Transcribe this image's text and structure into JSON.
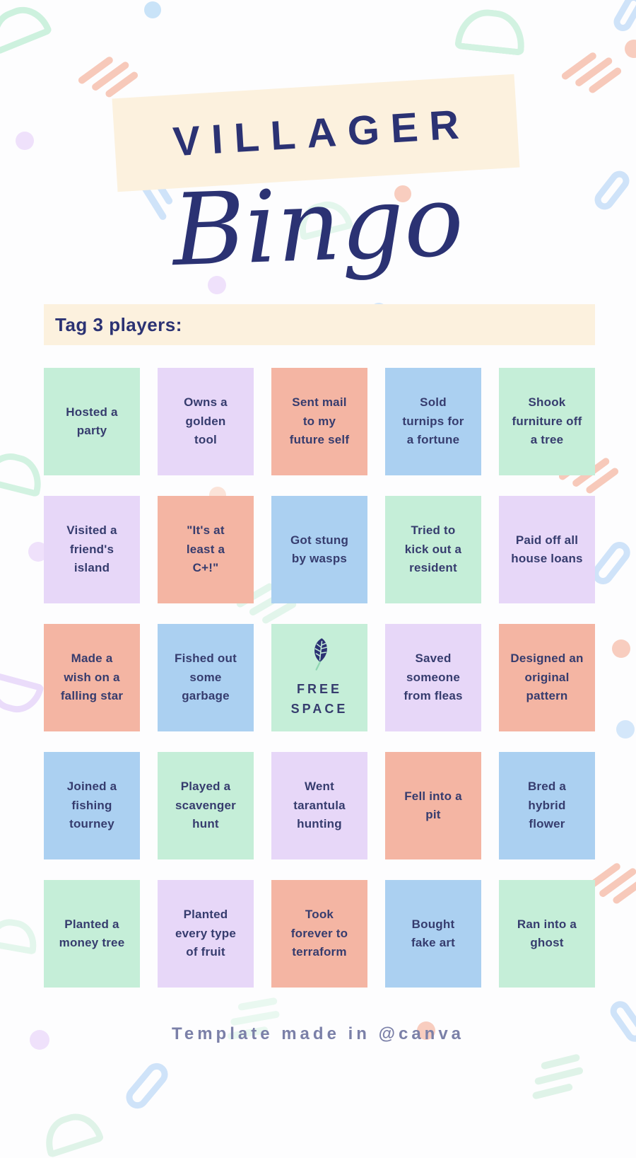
{
  "header": {
    "kicker": "VILLAGER",
    "title": "Bingo"
  },
  "tag_bar": {
    "label": "Tag 3 players:"
  },
  "board": {
    "rows": 5,
    "cols": 5,
    "free_space_icon": "leaf-icon",
    "cells": [
      {
        "text": "Hosted a\nparty",
        "color": "green"
      },
      {
        "text": "Owns a\ngolden\ntool",
        "color": "lavender"
      },
      {
        "text": "Sent mail\nto my\nfuture self",
        "color": "salmon"
      },
      {
        "text": "Sold\nturnips for\na fortune",
        "color": "blue"
      },
      {
        "text": "Shook\nfurniture off\na tree",
        "color": "green"
      },
      {
        "text": "Visited a\nfriend's\nisland",
        "color": "lavender"
      },
      {
        "text": "\"It's at\nleast a\nC+!\"",
        "color": "salmon"
      },
      {
        "text": "Got stung\nby wasps",
        "color": "blue"
      },
      {
        "text": "Tried to\nkick out a\nresident",
        "color": "green"
      },
      {
        "text": "Paid off all\nhouse loans",
        "color": "lavender"
      },
      {
        "text": "Made a\nwish on a\nfalling star",
        "color": "salmon"
      },
      {
        "text": "Fished out\nsome\ngarbage",
        "color": "blue"
      },
      {
        "text": "FREE\nSPACE",
        "color": "green",
        "free_space": true
      },
      {
        "text": "Saved\nsomeone\nfrom fleas",
        "color": "lavender"
      },
      {
        "text": "Designed an\noriginal\npattern",
        "color": "salmon"
      },
      {
        "text": "Joined a\nfishing\ntourney",
        "color": "blue"
      },
      {
        "text": "Played a\nscavenger\nhunt",
        "color": "green"
      },
      {
        "text": "Went\ntarantula\nhunting",
        "color": "lavender"
      },
      {
        "text": "Fell into a\npit",
        "color": "salmon"
      },
      {
        "text": "Bred a\nhybrid\nflower",
        "color": "blue"
      },
      {
        "text": "Planted a\nmoney tree",
        "color": "green"
      },
      {
        "text": "Planted\nevery type\nof fruit",
        "color": "lavender"
      },
      {
        "text": "Took\nforever to\nterraform",
        "color": "salmon"
      },
      {
        "text": "Bought\nfake art",
        "color": "blue"
      },
      {
        "text": "Ran into a\nghost",
        "color": "green"
      }
    ]
  },
  "footer": {
    "credit": "Template made in @canva"
  },
  "colors": {
    "navy": "#2b3273",
    "cell_text": "#363c6e",
    "cream": "#fcf1de",
    "green": "#c5eed8",
    "lavender": "#e7d7f8",
    "salmon": "#f4b5a3",
    "blue": "#abd0f1",
    "footer_text": "#7b80a8",
    "leaf_vein": "#c5eed8"
  }
}
